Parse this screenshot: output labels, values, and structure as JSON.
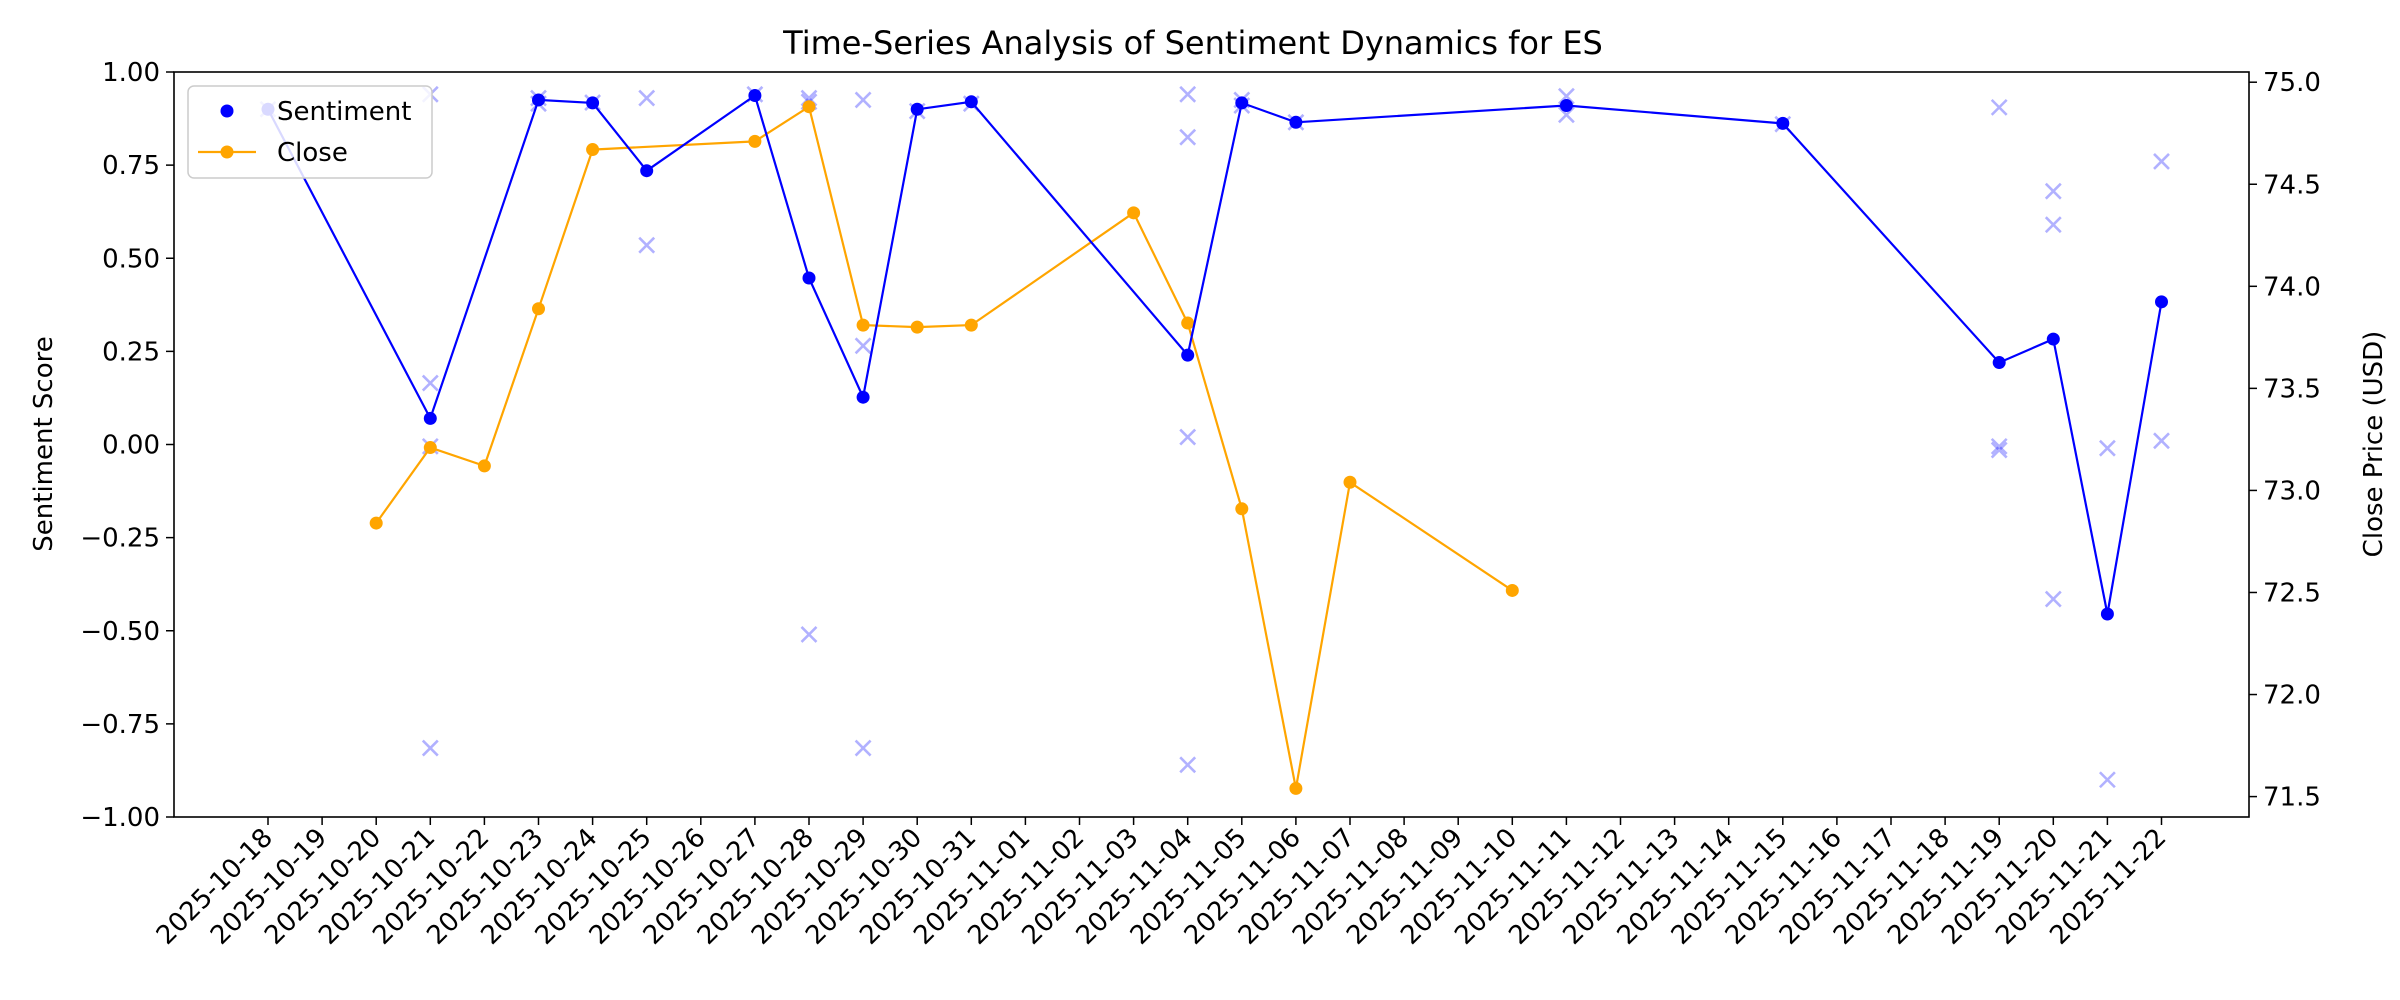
{
  "chart_data": {
    "type": "line",
    "title": "Time-Series Analysis of Sentiment Dynamics for ES",
    "ylabel_left": "Sentiment Score",
    "ylabel_right": "Close Price (USD)",
    "xlabel": "",
    "x_categories": [
      "2025-10-18",
      "2025-10-19",
      "2025-10-20",
      "2025-10-21",
      "2025-10-22",
      "2025-10-23",
      "2025-10-24",
      "2025-10-25",
      "2025-10-26",
      "2025-10-27",
      "2025-10-28",
      "2025-10-29",
      "2025-10-30",
      "2025-10-31",
      "2025-11-01",
      "2025-11-02",
      "2025-11-03",
      "2025-11-04",
      "2025-11-05",
      "2025-11-06",
      "2025-11-07",
      "2025-11-08",
      "2025-11-09",
      "2025-11-10",
      "2025-11-11",
      "2025-11-12",
      "2025-11-13",
      "2025-11-14",
      "2025-11-15",
      "2025-11-16",
      "2025-11-17",
      "2025-11-18",
      "2025-11-19",
      "2025-11-20",
      "2025-11-21",
      "2025-11-22"
    ],
    "ylim_left": [
      -1.0,
      1.0
    ],
    "yticks_left": [
      "1.00",
      "0.75",
      "0.50",
      "0.25",
      "0.00",
      "−0.25",
      "−0.50",
      "−0.75",
      "−1.00"
    ],
    "ylim_right": [
      71.4,
      75.05
    ],
    "yticks_right": [
      "75.0",
      "74.5",
      "74.0",
      "73.5",
      "73.0",
      "72.5",
      "72.0",
      "71.5"
    ],
    "grid": false,
    "legend_location": "upper left",
    "series": [
      {
        "name": "Sentiment",
        "axis": "left",
        "color": "#0000ff",
        "marker": "circle",
        "points": [
          [
            "2025-10-18",
            0.9
          ],
          [
            "2025-10-21",
            0.07
          ],
          [
            "2025-10-23",
            0.925
          ],
          [
            "2025-10-24",
            0.917
          ],
          [
            "2025-10-25",
            0.735
          ],
          [
            "2025-10-27",
            0.937
          ],
          [
            "2025-10-28",
            0.447
          ],
          [
            "2025-10-29",
            0.127
          ],
          [
            "2025-10-30",
            0.9
          ],
          [
            "2025-10-31",
            0.92
          ],
          [
            "2025-11-04",
            0.24
          ],
          [
            "2025-11-05",
            0.917
          ],
          [
            "2025-11-06",
            0.865
          ],
          [
            "2025-11-11",
            0.91
          ],
          [
            "2025-11-15",
            0.862
          ],
          [
            "2025-11-19",
            0.22
          ],
          [
            "2025-11-20",
            0.283
          ],
          [
            "2025-11-21",
            -0.455
          ],
          [
            "2025-11-22",
            0.383
          ]
        ]
      },
      {
        "name": "Close",
        "axis": "right",
        "color": "#ffa500",
        "marker": "circle",
        "points": [
          [
            "2025-10-20",
            72.84
          ],
          [
            "2025-10-21",
            73.21
          ],
          [
            "2025-10-22",
            73.12
          ],
          [
            "2025-10-23",
            73.89
          ],
          [
            "2025-10-24",
            74.67
          ],
          [
            "2025-10-27",
            74.71
          ],
          [
            "2025-10-28",
            74.88
          ],
          [
            "2025-10-29",
            73.81
          ],
          [
            "2025-10-30",
            73.8
          ],
          [
            "2025-10-31",
            73.81
          ],
          [
            "2025-11-03",
            74.36
          ],
          [
            "2025-11-04",
            73.82
          ],
          [
            "2025-11-05",
            72.91
          ],
          [
            "2025-11-06",
            71.54
          ],
          [
            "2025-11-07",
            73.04
          ],
          [
            "2025-11-10",
            72.51
          ]
        ]
      },
      {
        "name": "",
        "axis": "left",
        "color": "#0000ff",
        "marker": "x",
        "opacity": 0.3,
        "points": [
          [
            "2025-10-18",
            0.9
          ],
          [
            "2025-10-21",
            0.94
          ],
          [
            "2025-10-21",
            0.165
          ],
          [
            "2025-10-21",
            -0.005
          ],
          [
            "2025-10-21",
            -0.815
          ],
          [
            "2025-10-23",
            0.93
          ],
          [
            "2025-10-23",
            0.915
          ],
          [
            "2025-10-24",
            0.918
          ],
          [
            "2025-10-25",
            0.93
          ],
          [
            "2025-10-25",
            0.535
          ],
          [
            "2025-10-27",
            0.94
          ],
          [
            "2025-10-28",
            0.93
          ],
          [
            "2025-10-28",
            0.92
          ],
          [
            "2025-10-28",
            -0.51
          ],
          [
            "2025-10-29",
            0.925
          ],
          [
            "2025-10-29",
            0.265
          ],
          [
            "2025-10-29",
            -0.815
          ],
          [
            "2025-10-30",
            0.895
          ],
          [
            "2025-10-31",
            0.915
          ],
          [
            "2025-11-04",
            0.94
          ],
          [
            "2025-11-04",
            0.825
          ],
          [
            "2025-11-04",
            0.02
          ],
          [
            "2025-11-04",
            -0.86
          ],
          [
            "2025-11-05",
            0.925
          ],
          [
            "2025-11-05",
            0.91
          ],
          [
            "2025-11-06",
            0.865
          ],
          [
            "2025-11-11",
            0.935
          ],
          [
            "2025-11-11",
            0.885
          ],
          [
            "2025-11-15",
            0.86
          ],
          [
            "2025-11-19",
            0.905
          ],
          [
            "2025-11-19",
            -0.005
          ],
          [
            "2025-11-19",
            -0.015
          ],
          [
            "2025-11-20",
            0.68
          ],
          [
            "2025-11-20",
            0.59
          ],
          [
            "2025-11-20",
            -0.415
          ],
          [
            "2025-11-21",
            -0.01
          ],
          [
            "2025-11-21",
            -0.9
          ],
          [
            "2025-11-22",
            0.76
          ],
          [
            "2025-11-22",
            0.01
          ]
        ]
      }
    ]
  }
}
